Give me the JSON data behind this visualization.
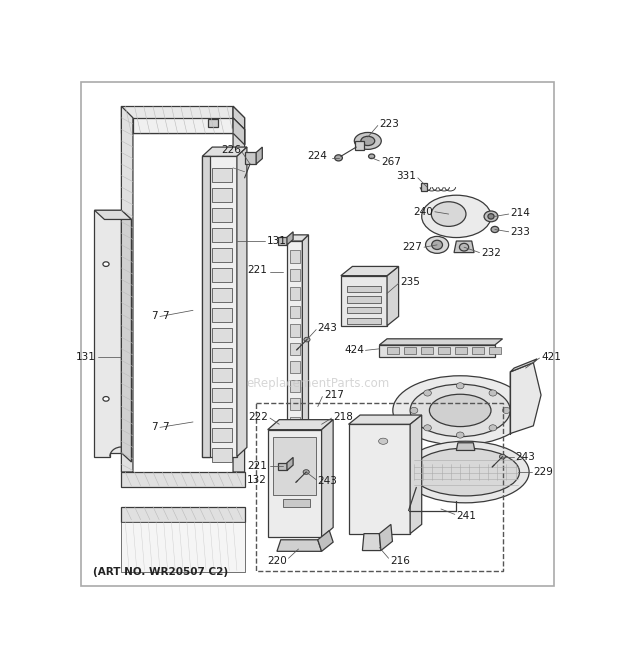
{
  "art_no": "(ART NO. WR20507 C2)",
  "watermark": "eReplacementParts.com",
  "background_color": "#ffffff",
  "line_color": "#3a3a3a",
  "label_color": "#1a1a1a",
  "fig_width": 6.2,
  "fig_height": 6.61,
  "dpi": 100
}
